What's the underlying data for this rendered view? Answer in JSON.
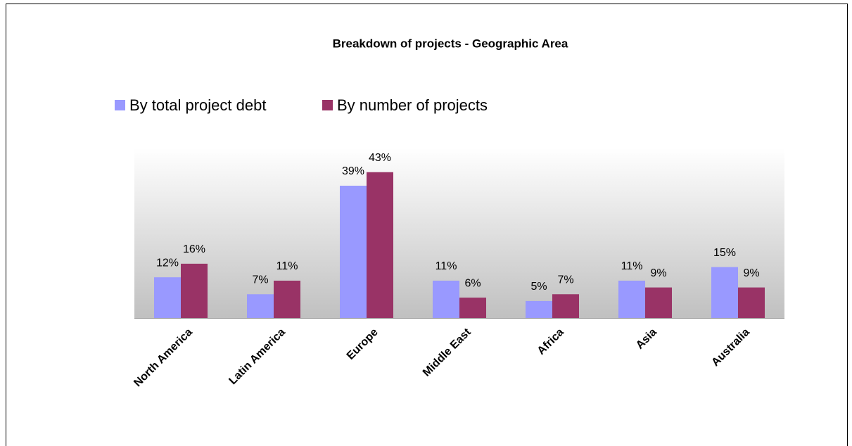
{
  "chart_data": {
    "type": "bar",
    "title": "Breakdown of projects - Geographic Area",
    "categories": [
      "North America",
      "Latin America",
      "Europe",
      "Middle East",
      "Africa",
      "Asia",
      "Australia"
    ],
    "series": [
      {
        "name": "By total project debt",
        "color": "#9999ff",
        "values": [
          12,
          7,
          39,
          11,
          5,
          11,
          15
        ],
        "value_labels": [
          "12%",
          "7%",
          "39%",
          "11%",
          "5%",
          "11%",
          "15%"
        ]
      },
      {
        "name": "By number of projects",
        "color": "#993366",
        "values": [
          16,
          11,
          43,
          6,
          7,
          9,
          9
        ],
        "value_labels": [
          "16%",
          "11%",
          "43%",
          "6%",
          "7%",
          "9%",
          "9%"
        ]
      }
    ],
    "ylim": [
      0,
      50
    ],
    "legend": "top"
  }
}
